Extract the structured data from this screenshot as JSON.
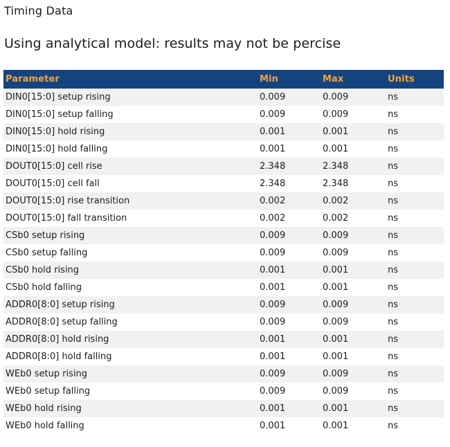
{
  "page": {
    "title": "Timing Data",
    "subtitle": "Using analytical model: results may not be percise"
  },
  "table": {
    "columns": [
      {
        "key": "parameter",
        "label": "Parameter"
      },
      {
        "key": "min",
        "label": "Min"
      },
      {
        "key": "max",
        "label": "Max"
      },
      {
        "key": "units",
        "label": "Units"
      }
    ],
    "rows": [
      {
        "parameter": "DIN0[15:0] setup rising",
        "min": "0.009",
        "max": "0.009",
        "units": "ns"
      },
      {
        "parameter": "DIN0[15:0] setup falling",
        "min": "0.009",
        "max": "0.009",
        "units": "ns"
      },
      {
        "parameter": "DIN0[15:0] hold rising",
        "min": "0.001",
        "max": "0.001",
        "units": "ns"
      },
      {
        "parameter": "DIN0[15:0] hold falling",
        "min": "0.001",
        "max": "0.001",
        "units": "ns"
      },
      {
        "parameter": "DOUT0[15:0] cell rise",
        "min": "2.348",
        "max": "2.348",
        "units": "ns"
      },
      {
        "parameter": "DOUT0[15:0] cell fall",
        "min": "2.348",
        "max": "2.348",
        "units": "ns"
      },
      {
        "parameter": "DOUT0[15:0] rise transition",
        "min": "0.002",
        "max": "0.002",
        "units": "ns"
      },
      {
        "parameter": "DOUT0[15:0] fall transition",
        "min": "0.002",
        "max": "0.002",
        "units": "ns"
      },
      {
        "parameter": "CSb0 setup rising",
        "min": "0.009",
        "max": "0.009",
        "units": "ns"
      },
      {
        "parameter": "CSb0 setup falling",
        "min": "0.009",
        "max": "0.009",
        "units": "ns"
      },
      {
        "parameter": "CSb0 hold rising",
        "min": "0.001",
        "max": "0.001",
        "units": "ns"
      },
      {
        "parameter": "CSb0 hold falling",
        "min": "0.001",
        "max": "0.001",
        "units": "ns"
      },
      {
        "parameter": "ADDR0[8:0] setup rising",
        "min": "0.009",
        "max": "0.009",
        "units": "ns"
      },
      {
        "parameter": "ADDR0[8:0] setup falling",
        "min": "0.009",
        "max": "0.009",
        "units": "ns"
      },
      {
        "parameter": "ADDR0[8:0] hold rising",
        "min": "0.001",
        "max": "0.001",
        "units": "ns"
      },
      {
        "parameter": "ADDR0[8:0] hold falling",
        "min": "0.001",
        "max": "0.001",
        "units": "ns"
      },
      {
        "parameter": "WEb0 setup rising",
        "min": "0.009",
        "max": "0.009",
        "units": "ns"
      },
      {
        "parameter": "WEb0 setup falling",
        "min": "0.009",
        "max": "0.009",
        "units": "ns"
      },
      {
        "parameter": "WEb0 hold rising",
        "min": "0.001",
        "max": "0.001",
        "units": "ns"
      },
      {
        "parameter": "WEb0 hold falling",
        "min": "0.001",
        "max": "0.001",
        "units": "ns"
      }
    ]
  },
  "colors": {
    "header_bg": "#134480",
    "header_text": "#F1A43D",
    "row_alt_bg": "#F0F1F1",
    "body_text": "#1C1C1C",
    "page_bg": "#FFFFFF"
  }
}
